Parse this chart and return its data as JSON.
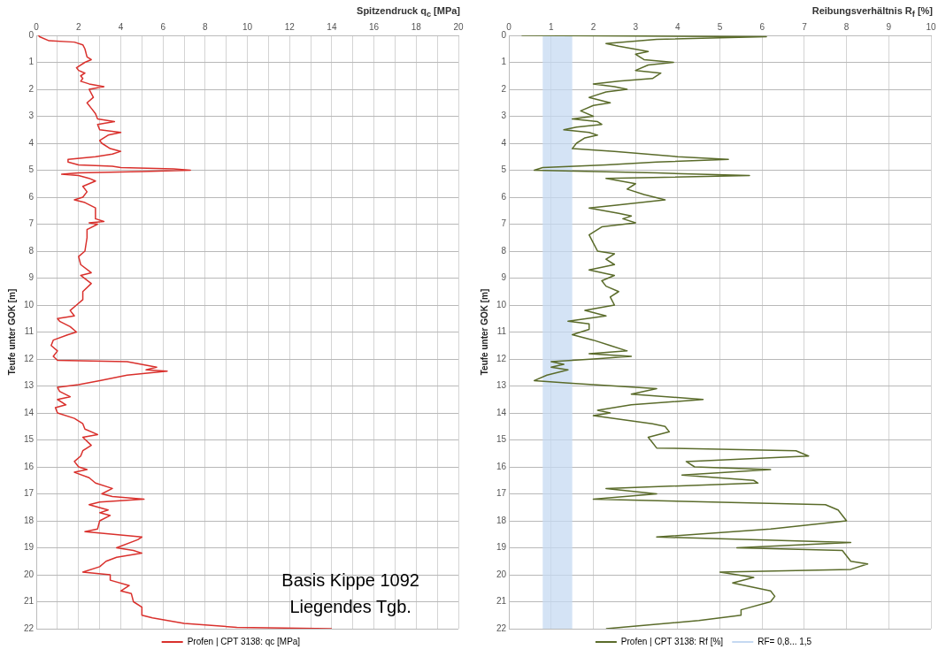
{
  "chart_data": [
    {
      "type": "line",
      "xlabel": "Spitzendruck q$_{c}$ [MPa]",
      "ylabel": "Teufe unter GOK [m]",
      "xlim": [
        0,
        20
      ],
      "xticks": [
        0,
        {
          "value": 1,
          "label": null
        },
        2,
        {
          "value": 3,
          "label": null
        },
        4,
        {
          "value": 5,
          "label": null
        },
        6,
        {
          "value": 7,
          "label": null
        },
        8,
        {
          "value": 9,
          "label": null
        },
        10,
        {
          "value": 11,
          "label": null
        },
        12,
        {
          "value": 13,
          "label": null
        },
        14,
        {
          "value": 15,
          "label": null
        },
        16,
        {
          "value": 17,
          "label": null
        },
        18,
        {
          "value": 19,
          "label": null
        },
        20
      ],
      "ylim": [
        22,
        0
      ],
      "yticks": [
        0,
        1,
        2,
        3,
        4,
        5,
        6,
        7,
        8,
        9,
        10,
        11,
        12,
        13,
        14,
        15,
        16,
        17,
        18,
        19,
        20,
        21,
        22
      ],
      "grid": true,
      "legend": "bottom",
      "annotations": [
        "Basis Kippe 1092",
        "Liegendes Tgb."
      ],
      "series": [
        {
          "name": "Profen | CPT 3138: qc [MPa]",
          "color": "#d9302c",
          "x": [
            0.1,
            0.15,
            0.6,
            1.8,
            2.2,
            2.3,
            2.4,
            2.6,
            2.3,
            1.9,
            2.0,
            2.3,
            2.1,
            2.2,
            2.1,
            2.5,
            3.2,
            2.5,
            2.7,
            2.4,
            2.6,
            2.8,
            2.9,
            3.7,
            2.9,
            3.0,
            4.0,
            3.4,
            3.0,
            3.1,
            3.5,
            4.0,
            3.6,
            2.8,
            1.5,
            1.5,
            2.0,
            3.6,
            4.0,
            6.5,
            7.3,
            5.0,
            2.0,
            1.2,
            2.0,
            2.5,
            2.8,
            2.2,
            2.4,
            2.2,
            1.8,
            2.3,
            2.8,
            2.8,
            3.2,
            2.5,
            2.9,
            2.4,
            2.4,
            2.3,
            2.0,
            2.1,
            2.6,
            2.1,
            2.6,
            2.2,
            2.2,
            1.9,
            1.6,
            1.8,
            1.0,
            1.1,
            1.6,
            1.9,
            1.5,
            0.8,
            0.7,
            1.0,
            0.8,
            1.0,
            4.3,
            5.7,
            5.2,
            6.2,
            4.3,
            3.0,
            2.0,
            1.0,
            1.1,
            1.6,
            1.0,
            1.4,
            0.9,
            1.0,
            1.8,
            2.2,
            2.3,
            2.9,
            2.2,
            2.6,
            2.2,
            2.1,
            1.8,
            2.0,
            2.4,
            1.8,
            2.5,
            2.8,
            3.6,
            3.1,
            3.6,
            5.1,
            3.0,
            2.5,
            3.4,
            3.0,
            3.5,
            3.0,
            2.9,
            2.3,
            5.0,
            4.8,
            3.8,
            4.6,
            5.0,
            3.8,
            3.3,
            3.0,
            2.2,
            3.5,
            3.5,
            4.4,
            4.0,
            4.5,
            4.6,
            5.0,
            5.0,
            5.5,
            7.0,
            9.5,
            14.0
          ],
          "values": [
            0,
            0.05,
            0.2,
            0.25,
            0.35,
            0.5,
            0.8,
            0.9,
            1.0,
            1.2,
            1.3,
            1.4,
            1.5,
            1.6,
            1.7,
            1.8,
            1.9,
            2.0,
            2.3,
            2.5,
            2.7,
            2.9,
            3.1,
            3.2,
            3.3,
            3.5,
            3.6,
            3.7,
            3.9,
            4.0,
            4.2,
            4.3,
            4.4,
            4.5,
            4.6,
            4.7,
            4.8,
            4.85,
            4.9,
            4.95,
            5.0,
            5.05,
            5.1,
            5.15,
            5.2,
            5.3,
            5.4,
            5.6,
            5.8,
            6.0,
            6.1,
            6.2,
            6.4,
            6.8,
            6.9,
            6.95,
            7.0,
            7.2,
            7.5,
            8.0,
            8.2,
            8.5,
            8.8,
            8.9,
            9.2,
            9.5,
            9.8,
            10.0,
            10.2,
            10.4,
            10.5,
            10.6,
            10.8,
            11.0,
            11.1,
            11.3,
            11.5,
            11.7,
            11.9,
            12.05,
            12.1,
            12.3,
            12.4,
            12.45,
            12.6,
            12.8,
            12.95,
            13.05,
            13.2,
            13.4,
            13.5,
            13.7,
            13.8,
            14.0,
            14.2,
            14.4,
            14.6,
            14.8,
            14.9,
            15.2,
            15.4,
            15.6,
            15.8,
            16.0,
            16.1,
            16.2,
            16.4,
            16.6,
            16.8,
            17.0,
            17.1,
            17.2,
            17.3,
            17.4,
            17.6,
            17.7,
            17.8,
            18.0,
            18.3,
            18.4,
            18.6,
            18.7,
            19.0,
            19.1,
            19.2,
            19.35,
            19.5,
            19.7,
            19.9,
            20.0,
            20.2,
            20.4,
            20.6,
            20.7,
            21.0,
            21.2,
            21.5,
            21.6,
            21.8,
            21.95,
            22.0
          ]
        }
      ]
    },
    {
      "type": "line",
      "xlabel": "Reibungsverhältnis R$_{f}$ [%]",
      "ylabel": "Teufe unter GOK [m]",
      "xlim": [
        0,
        10
      ],
      "xticks": [
        0,
        1,
        2,
        3,
        4,
        5,
        6,
        7,
        8,
        9,
        10
      ],
      "ylim": [
        22,
        0
      ],
      "yticks": [
        0,
        1,
        2,
        3,
        4,
        5,
        6,
        7,
        8,
        9,
        10,
        11,
        12,
        13,
        14,
        15,
        16,
        17,
        18,
        19,
        20,
        21,
        22
      ],
      "grid": true,
      "legend": "bottom",
      "bands": [
        {
          "axis": "x",
          "from": 0.8,
          "to": 1.5,
          "label": "RF= 0,8... 1,5",
          "color": "#c5d9f1"
        }
      ],
      "series": [
        {
          "name": "Profen | CPT 3138: Rf [%]",
          "color": "#5a6b2a",
          "x": [
            0.3,
            6.1,
            3.5,
            2.3,
            2.6,
            3.3,
            3.0,
            3.2,
            3.9,
            3.3,
            3.0,
            3.6,
            3.4,
            2.6,
            2.0,
            2.5,
            2.8,
            2.3,
            1.9,
            2.4,
            2.0,
            1.7,
            2.0,
            1.5,
            2.1,
            2.2,
            1.6,
            1.3,
            1.9,
            2.1,
            1.8,
            1.6,
            1.5,
            2.5,
            4.0,
            5.2,
            3.5,
            2.3,
            0.8,
            0.6,
            3.5,
            5.7,
            2.3,
            3.0,
            2.8,
            3.2,
            3.7,
            2.5,
            1.9,
            2.6,
            2.9,
            2.7,
            3.0,
            2.2,
            1.9,
            2.0,
            2.1,
            2.5,
            2.3,
            2.5,
            1.9,
            2.5,
            2.2,
            2.3,
            2.6,
            2.4,
            2.5,
            1.8,
            2.3,
            1.4,
            1.9,
            1.9,
            1.5,
            2.0,
            2.4,
            2.8,
            1.9,
            2.9,
            2.0,
            1.0,
            1.3,
            1.0,
            1.4,
            0.9,
            0.6,
            1.5,
            2.5,
            3.5,
            2.9,
            4.6,
            2.9,
            2.1,
            2.4,
            2.0,
            3.4,
            3.7,
            3.8,
            3.3,
            3.4,
            3.5,
            6.8,
            7.1,
            4.2,
            4.4,
            6.2,
            4.1,
            5.8,
            5.9,
            2.3,
            3.5,
            2.0,
            7.5,
            7.8,
            8.0,
            6.2,
            3.5,
            8.1,
            5.4,
            7.9,
            8.1,
            8.5,
            8.1,
            5.0,
            5.8,
            5.3,
            6.2,
            6.3,
            6.2,
            5.5,
            5.5,
            4.5,
            2.3
          ],
          "values": [
            0.0,
            0.05,
            0.15,
            0.3,
            0.4,
            0.6,
            0.7,
            0.9,
            1.0,
            1.1,
            1.3,
            1.4,
            1.6,
            1.7,
            1.8,
            1.9,
            2.0,
            2.1,
            2.3,
            2.5,
            2.6,
            2.8,
            3.0,
            3.1,
            3.2,
            3.3,
            3.4,
            3.5,
            3.6,
            3.7,
            3.8,
            4.0,
            4.2,
            4.3,
            4.5,
            4.6,
            4.7,
            4.8,
            4.9,
            5.0,
            5.1,
            5.2,
            5.3,
            5.5,
            5.7,
            5.9,
            6.1,
            6.3,
            6.4,
            6.6,
            6.7,
            6.8,
            6.95,
            7.1,
            7.4,
            7.7,
            8.0,
            8.1,
            8.3,
            8.5,
            8.7,
            8.9,
            9.1,
            9.3,
            9.5,
            9.7,
            10.0,
            10.2,
            10.4,
            10.6,
            10.7,
            10.9,
            11.1,
            11.3,
            11.5,
            11.7,
            11.8,
            11.9,
            12.0,
            12.1,
            12.2,
            12.3,
            12.4,
            12.6,
            12.8,
            12.9,
            13.0,
            13.1,
            13.3,
            13.5,
            13.7,
            13.9,
            14.0,
            14.1,
            14.4,
            14.5,
            14.7,
            14.9,
            15.1,
            15.3,
            15.4,
            15.6,
            15.8,
            16.0,
            16.1,
            16.3,
            16.5,
            16.6,
            16.8,
            17.0,
            17.2,
            17.4,
            17.6,
            18.0,
            18.3,
            18.6,
            18.8,
            19.0,
            19.1,
            19.5,
            19.6,
            19.8,
            19.9,
            20.1,
            20.3,
            20.6,
            20.8,
            21.0,
            21.3,
            21.5,
            21.7,
            22.0
          ]
        }
      ]
    }
  ]
}
